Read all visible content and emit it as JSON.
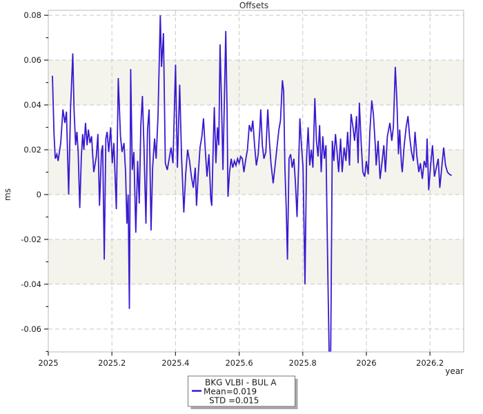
{
  "title": "Offsets",
  "axes": {
    "xlabel": "year",
    "ylabel": "ms"
  },
  "legend": {
    "series_label": "BKG VLBI - BUL A",
    "mean_label": "Mean=0.019",
    "std_label": "STD =0.015"
  },
  "colors": {
    "line": "#3a18cf",
    "band": "#f4f4ec",
    "grid": "#c8c8c8",
    "spine": "#b8b8b8",
    "tick": "#222222",
    "text": "#1a1a1a",
    "legend_border": "#777777",
    "legend_shadow": "#a9a9a9",
    "background": "#ffffff"
  },
  "chart_data": {
    "type": "line",
    "title": "Offsets",
    "xlabel": "year",
    "ylabel": "ms",
    "xlim": [
      2025.0,
      2026.306
    ],
    "ylim": [
      -0.0702,
      0.0822
    ],
    "xticks": [
      2025,
      2025.2,
      2025.4,
      2025.6,
      2025.8,
      2026,
      2026.2
    ],
    "xtick_labels": [
      "2025",
      "2025.2",
      "2025.4",
      "2025.6",
      "2025.8",
      "2026",
      "2026.2"
    ],
    "yticks": [
      -0.06,
      -0.04,
      -0.02,
      0,
      0.02,
      0.04,
      0.06,
      0.08
    ],
    "ytick_labels": [
      "-0.06",
      "-0.04",
      "-0.02",
      "0",
      "0.02",
      "0.04",
      "0.06",
      "0.08"
    ],
    "y_minor_step": 0.01,
    "grid": true,
    "grid_style": "dashed",
    "shaded_bands": [
      [
        0,
        0.02
      ],
      [
        0.04,
        0.06
      ],
      [
        -0.04,
        -0.02
      ]
    ],
    "legend_position": "bottom-center-outside",
    "series": [
      {
        "name": "BKG VLBI - BUL A",
        "mean": 0.019,
        "std": 0.015,
        "points": [
          [
            2025.013,
            0.053
          ],
          [
            2025.018,
            0.027
          ],
          [
            2025.022,
            0.016
          ],
          [
            2025.027,
            0.018
          ],
          [
            2025.031,
            0.015
          ],
          [
            2025.039,
            0.023
          ],
          [
            2025.046,
            0.038
          ],
          [
            2025.052,
            0.032
          ],
          [
            2025.057,
            0.037
          ],
          [
            2025.064,
            0.0
          ],
          [
            2025.07,
            0.039
          ],
          [
            2025.077,
            0.063
          ],
          [
            2025.081,
            0.038
          ],
          [
            2025.086,
            0.022
          ],
          [
            2025.09,
            0.028
          ],
          [
            2025.094,
            0.019
          ],
          [
            2025.099,
            -0.006
          ],
          [
            2025.104,
            0.017
          ],
          [
            2025.108,
            0.027
          ],
          [
            2025.112,
            0.02
          ],
          [
            2025.117,
            0.032
          ],
          [
            2025.122,
            0.022
          ],
          [
            2025.126,
            0.029
          ],
          [
            2025.131,
            0.023
          ],
          [
            2025.136,
            0.026
          ],
          [
            2025.143,
            0.01
          ],
          [
            2025.151,
            0.017
          ],
          [
            2025.156,
            0.027
          ],
          [
            2025.161,
            -0.005
          ],
          [
            2025.167,
            0.019
          ],
          [
            2025.171,
            0.022
          ],
          [
            2025.176,
            -0.029
          ],
          [
            2025.181,
            0.025
          ],
          [
            2025.185,
            0.028
          ],
          [
            2025.19,
            0.019
          ],
          [
            2025.196,
            0.03
          ],
          [
            2025.201,
            0.014
          ],
          [
            2025.206,
            0.023
          ],
          [
            2025.214,
            -0.0065
          ],
          [
            2025.22,
            0.052
          ],
          [
            2025.227,
            0.026
          ],
          [
            2025.232,
            0.019
          ],
          [
            2025.238,
            0.023
          ],
          [
            2025.243,
            0.01
          ],
          [
            2025.247,
            -0.013
          ],
          [
            2025.251,
            0.0
          ],
          [
            2025.255,
            -0.051
          ],
          [
            2025.259,
            0.056
          ],
          [
            2025.264,
            0.011
          ],
          [
            2025.269,
            0.019
          ],
          [
            2025.275,
            -0.017
          ],
          [
            2025.281,
            0.015
          ],
          [
            2025.286,
            -0.004
          ],
          [
            2025.291,
            0.031
          ],
          [
            2025.296,
            0.044
          ],
          [
            2025.301,
            0.021
          ],
          [
            2025.307,
            -0.013
          ],
          [
            2025.312,
            0.029
          ],
          [
            2025.317,
            0.038
          ],
          [
            2025.323,
            -0.016
          ],
          [
            2025.328,
            0.012
          ],
          [
            2025.334,
            0.025
          ],
          [
            2025.339,
            0.016
          ],
          [
            2025.345,
            0.035
          ],
          [
            2025.352,
            0.08
          ],
          [
            2025.356,
            0.057
          ],
          [
            2025.362,
            0.072
          ],
          [
            2025.368,
            0.014
          ],
          [
            2025.374,
            0.011
          ],
          [
            2025.38,
            0.016
          ],
          [
            2025.386,
            0.021
          ],
          [
            2025.392,
            0.014
          ],
          [
            2025.4,
            0.058
          ],
          [
            2025.406,
            0.012
          ],
          [
            2025.413,
            0.049
          ],
          [
            2025.419,
            0.017
          ],
          [
            2025.426,
            -0.008
          ],
          [
            2025.432,
            0.009
          ],
          [
            2025.438,
            0.02
          ],
          [
            2025.444,
            0.015
          ],
          [
            2025.45,
            0.008
          ],
          [
            2025.456,
            0.003
          ],
          [
            2025.462,
            0.012
          ],
          [
            2025.466,
            -0.005
          ],
          [
            2025.471,
            0.008
          ],
          [
            2025.477,
            0.021
          ],
          [
            2025.483,
            0.026
          ],
          [
            2025.488,
            0.034
          ],
          [
            2025.494,
            0.019
          ],
          [
            2025.499,
            0.008
          ],
          [
            2025.505,
            0.018
          ],
          [
            2025.511,
            -0.002
          ],
          [
            2025.514,
            -0.005
          ],
          [
            2025.519,
            0.024
          ],
          [
            2025.522,
            0.039
          ],
          [
            2025.527,
            0.014
          ],
          [
            2025.532,
            0.03
          ],
          [
            2025.536,
            0.022
          ],
          [
            2025.54,
            0.067
          ],
          [
            2025.544,
            0.044
          ],
          [
            2025.549,
            0.011
          ],
          [
            2025.553,
            0.038
          ],
          [
            2025.558,
            0.073
          ],
          [
            2025.562,
            0.037
          ],
          [
            2025.565,
            -0.001
          ],
          [
            2025.57,
            0.01
          ],
          [
            2025.575,
            0.016
          ],
          [
            2025.58,
            0.012
          ],
          [
            2025.585,
            0.015
          ],
          [
            2025.59,
            0.013
          ],
          [
            2025.595,
            0.016
          ],
          [
            2025.6,
            0.014
          ],
          [
            2025.605,
            0.017
          ],
          [
            2025.61,
            0.016
          ],
          [
            2025.615,
            0.01
          ],
          [
            2025.62,
            0.015
          ],
          [
            2025.626,
            0.02
          ],
          [
            2025.632,
            0.031
          ],
          [
            2025.638,
            0.028
          ],
          [
            2025.643,
            0.033
          ],
          [
            2025.649,
            0.021
          ],
          [
            2025.654,
            0.013
          ],
          [
            2025.66,
            0.018
          ],
          [
            2025.665,
            0.029
          ],
          [
            2025.668,
            0.038
          ],
          [
            2025.673,
            0.022
          ],
          [
            2025.678,
            0.016
          ],
          [
            2025.684,
            0.019
          ],
          [
            2025.69,
            0.038
          ],
          [
            2025.695,
            0.024
          ],
          [
            2025.7,
            0.014
          ],
          [
            2025.707,
            0.005
          ],
          [
            2025.713,
            0.013
          ],
          [
            2025.719,
            0.021
          ],
          [
            2025.725,
            0.029
          ],
          [
            2025.73,
            0.033
          ],
          [
            2025.736,
            0.051
          ],
          [
            2025.74,
            0.046
          ],
          [
            2025.744,
            0.012
          ],
          [
            2025.748,
            -0.006
          ],
          [
            2025.752,
            -0.029
          ],
          [
            2025.757,
            0.016
          ],
          [
            2025.762,
            0.018
          ],
          [
            2025.767,
            0.012
          ],
          [
            2025.772,
            0.016
          ],
          [
            2025.777,
            0.005
          ],
          [
            2025.782,
            -0.01
          ],
          [
            2025.787,
            0.013
          ],
          [
            2025.791,
            0.034
          ],
          [
            2025.796,
            0.022
          ],
          [
            2025.801,
            0.012
          ],
          [
            2025.807,
            -0.04
          ],
          [
            2025.812,
            0.016
          ],
          [
            2025.817,
            0.03
          ],
          [
            2025.822,
            0.013
          ],
          [
            2025.827,
            0.02
          ],
          [
            2025.832,
            0.012
          ],
          [
            2025.838,
            0.043
          ],
          [
            2025.843,
            0.024
          ],
          [
            2025.848,
            0.017
          ],
          [
            2025.853,
            0.031
          ],
          [
            2025.858,
            0.01
          ],
          [
            2025.863,
            0.026
          ],
          [
            2025.868,
            0.016
          ],
          [
            2025.873,
            0.022
          ],
          [
            2025.878,
            -0.027
          ],
          [
            2025.883,
            -0.0705
          ],
          [
            2025.888,
            -0.0703
          ],
          [
            2025.893,
            0.024
          ],
          [
            2025.898,
            0.015
          ],
          [
            2025.903,
            0.027
          ],
          [
            2025.908,
            0.019
          ],
          [
            2025.913,
            0.01
          ],
          [
            2025.919,
            0.025
          ],
          [
            2025.924,
            0.01
          ],
          [
            2025.93,
            0.021
          ],
          [
            2025.936,
            0.015
          ],
          [
            2025.941,
            0.028
          ],
          [
            2025.947,
            0.013
          ],
          [
            2025.952,
            0.036
          ],
          [
            2025.958,
            0.03
          ],
          [
            2025.963,
            0.024
          ],
          [
            2025.969,
            0.035
          ],
          [
            2025.974,
            0.014
          ],
          [
            2025.978,
            0.041
          ],
          [
            2025.984,
            0.022
          ],
          [
            2025.989,
            0.01
          ],
          [
            2025.995,
            0.008
          ],
          [
            2026.0,
            0.015
          ],
          [
            2026.006,
            0.009
          ],
          [
            2026.011,
            0.028
          ],
          [
            2026.017,
            0.042
          ],
          [
            2026.022,
            0.036
          ],
          [
            2026.028,
            0.022
          ],
          [
            2026.031,
            0.013
          ],
          [
            2026.037,
            0.024
          ],
          [
            2026.043,
            0.007
          ],
          [
            2026.049,
            0.014
          ],
          [
            2026.055,
            0.022
          ],
          [
            2026.06,
            0.01
          ],
          [
            2026.066,
            0.026
          ],
          [
            2026.074,
            0.032
          ],
          [
            2026.08,
            0.024
          ],
          [
            2026.085,
            0.03
          ],
          [
            2026.091,
            0.057
          ],
          [
            2026.096,
            0.042
          ],
          [
            2026.101,
            0.018
          ],
          [
            2026.105,
            0.029
          ],
          [
            2026.11,
            0.014
          ],
          [
            2026.113,
            0.01
          ],
          [
            2026.119,
            0.022
          ],
          [
            2026.125,
            0.03
          ],
          [
            2026.131,
            0.035
          ],
          [
            2026.136,
            0.026
          ],
          [
            2026.142,
            0.019
          ],
          [
            2026.148,
            0.015
          ],
          [
            2026.153,
            0.028
          ],
          [
            2026.159,
            0.017
          ],
          [
            2026.165,
            0.01
          ],
          [
            2026.17,
            0.014
          ],
          [
            2026.176,
            0.007
          ],
          [
            2026.182,
            0.015
          ],
          [
            2026.188,
            0.012
          ],
          [
            2026.191,
            0.025
          ],
          [
            2026.196,
            0.002
          ],
          [
            2026.202,
            0.013
          ],
          [
            2026.208,
            0.022
          ],
          [
            2026.214,
            0.008
          ],
          [
            2026.22,
            0.012
          ],
          [
            2026.226,
            0.016
          ],
          [
            2026.231,
            0.003
          ],
          [
            2026.237,
            0.012
          ],
          [
            2026.243,
            0.021
          ],
          [
            2026.249,
            0.013
          ],
          [
            2026.255,
            0.01
          ],
          [
            2026.262,
            0.009
          ],
          [
            2026.268,
            0.0085
          ]
        ]
      }
    ]
  }
}
